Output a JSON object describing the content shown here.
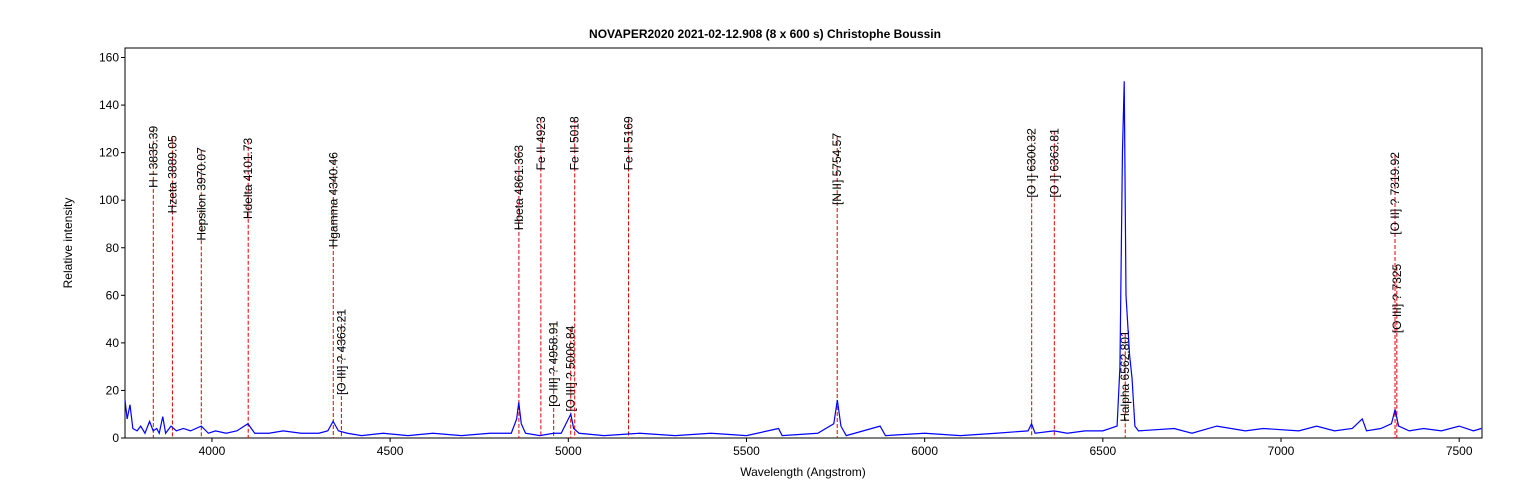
{
  "chart_data": {
    "type": "line",
    "title": "NOVAPER2020   2021-02-12.908   (8 x 600 s)   Christophe Boussin",
    "x_label": "Wavelength (Angstrom)",
    "y_label": "Relative intensity",
    "xlim": [
      3756,
      7564
    ],
    "ylim": [
      0,
      164
    ],
    "xticks": [
      4000,
      4500,
      5000,
      5500,
      6000,
      6500,
      7000,
      7500
    ],
    "yticks": [
      0,
      20,
      40,
      60,
      80,
      100,
      120,
      140,
      160
    ],
    "grid": false,
    "x": [
      3756,
      3762,
      3770,
      3778,
      3790,
      3800,
      3812,
      3825,
      3835,
      3845,
      3852,
      3862,
      3870,
      3885,
      3900,
      3920,
      3940,
      3970,
      3990,
      4010,
      4040,
      4070,
      4101,
      4120,
      4160,
      4200,
      4250,
      4300,
      4325,
      4340,
      4355,
      4380,
      4420,
      4480,
      4550,
      4620,
      4700,
      4780,
      4840,
      4855,
      4861,
      4868,
      4880,
      4920,
      4959,
      4980,
      5000,
      5007,
      5015,
      5030,
      5100,
      5200,
      5300,
      5400,
      5500,
      5590,
      5600,
      5700,
      5745,
      5755,
      5765,
      5780,
      5875,
      5890,
      6000,
      6100,
      6200,
      6290,
      6300,
      6310,
      6363,
      6400,
      6450,
      6500,
      6540,
      6548,
      6555,
      6560,
      6565,
      6575,
      6582,
      6590,
      6600,
      6700,
      6750,
      6820,
      6900,
      6950,
      7050,
      7100,
      7150,
      7200,
      7228,
      7240,
      7280,
      7310,
      7320,
      7330,
      7360,
      7400,
      7450,
      7500,
      7540,
      7562
    ],
    "series": [
      {
        "name": "spectrum",
        "color": "#0000ff",
        "values": [
          16,
          8,
          14,
          4,
          3,
          5,
          2,
          7,
          3,
          4,
          2,
          9,
          2,
          5,
          3,
          4,
          3,
          5,
          2,
          3,
          2,
          3,
          6,
          2,
          2,
          3,
          2,
          2,
          3,
          7,
          3,
          2,
          1,
          2,
          1,
          2,
          1,
          2,
          2,
          8,
          15,
          6,
          2,
          1,
          2,
          2,
          8,
          10,
          4,
          2,
          1,
          2,
          1,
          2,
          1,
          4,
          1,
          2,
          6,
          16,
          5,
          1,
          5,
          1,
          2,
          1,
          2,
          3,
          6,
          2,
          3,
          2,
          3,
          3,
          5,
          30,
          120,
          150,
          60,
          35,
          25,
          5,
          3,
          4,
          2,
          5,
          3,
          4,
          3,
          5,
          3,
          4,
          8,
          3,
          4,
          6,
          12,
          5,
          3,
          4,
          3,
          5,
          3,
          4
        ]
      }
    ],
    "lines": [
      {
        "label": "H I 3835.39",
        "x": 3835.39,
        "y": 130
      },
      {
        "label": "Hzeta 3889.05",
        "x": 3889.05,
        "y": 126
      },
      {
        "label": "Hepsilon 3970.07",
        "x": 3970.07,
        "y": 121
      },
      {
        "label": "Hdelta 4101.73",
        "x": 4101.73,
        "y": 125
      },
      {
        "label": "Hgamma 4340.46",
        "x": 4340.46,
        "y": 119
      },
      {
        "label": "[O III] ? 4363.21",
        "x": 4363.21,
        "y": 53
      },
      {
        "label": "Hbeta 4861.363",
        "x": 4861.363,
        "y": 122
      },
      {
        "label": "Fe II 4923",
        "x": 4923,
        "y": 134
      },
      {
        "label": "[O III] ? 4958.91",
        "x": 4958.91,
        "y": 48
      },
      {
        "label": "[O III] ? 5006.84",
        "x": 5006.84,
        "y": 46
      },
      {
        "label": "Fe II 5018",
        "x": 5018,
        "y": 134
      },
      {
        "label": "Fe II 5169",
        "x": 5169,
        "y": 134
      },
      {
        "label": "[N II] 5754.57",
        "x": 5754.57,
        "y": 127
      },
      {
        "label": "[O I] 6300.32",
        "x": 6300.32,
        "y": 129
      },
      {
        "label": "[O I] 6363.81",
        "x": 6363.81,
        "y": 129
      },
      {
        "label": "Halpha 6562.801",
        "x": 6562.801,
        "y": 44
      },
      {
        "label": "[O II] ? 7319.92",
        "x": 7319.92,
        "y": 119
      },
      {
        "label": "[O III] ? 7325",
        "x": 7325,
        "y": 72
      }
    ]
  }
}
